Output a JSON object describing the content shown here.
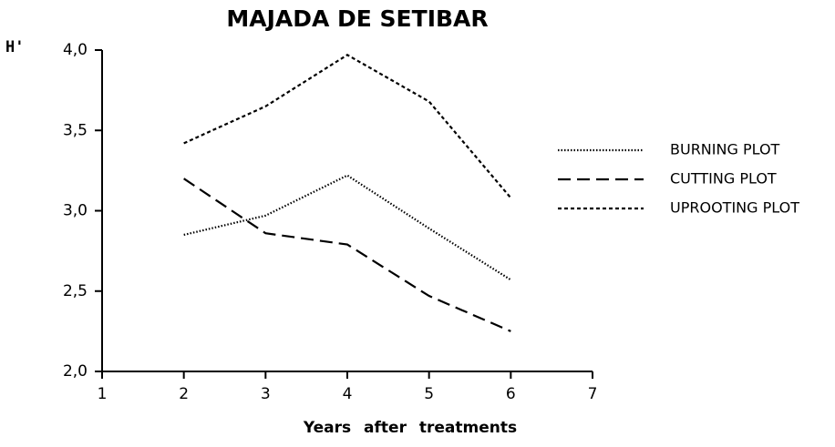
{
  "chart_data": {
    "type": "line",
    "title": "MAJADA DE SETIBAR",
    "y_label": "H'",
    "x_label": "Years after treatments",
    "x": [
      2,
      3,
      4,
      5,
      6
    ],
    "series": [
      {
        "name": "BURNING PLOT",
        "color": "#000000",
        "dash": "dotted",
        "values": [
          2.85,
          2.97,
          3.22,
          2.89,
          2.57
        ]
      },
      {
        "name": "CUTTING PLOT",
        "color": "#000000",
        "dash": "dashed",
        "values": [
          3.2,
          2.86,
          2.79,
          2.47,
          2.25
        ]
      },
      {
        "name": "UPROOTING PLOT",
        "color": "#000000",
        "dash": "short-dash",
        "values": [
          3.42,
          3.65,
          3.97,
          3.68,
          3.08
        ]
      }
    ],
    "xlim": [
      1,
      7
    ],
    "xticks": [
      1,
      2,
      3,
      4,
      5,
      6,
      7
    ],
    "ylim": [
      2,
      4
    ],
    "yticks": [
      {
        "value": 2,
        "label": "2,0"
      },
      {
        "value": 2.5,
        "label": "2,5"
      },
      {
        "value": 3,
        "label": "3,0"
      },
      {
        "value": 3.5,
        "label": "3,5"
      },
      {
        "value": 4,
        "label": "4,0"
      }
    ],
    "legend": "right"
  }
}
